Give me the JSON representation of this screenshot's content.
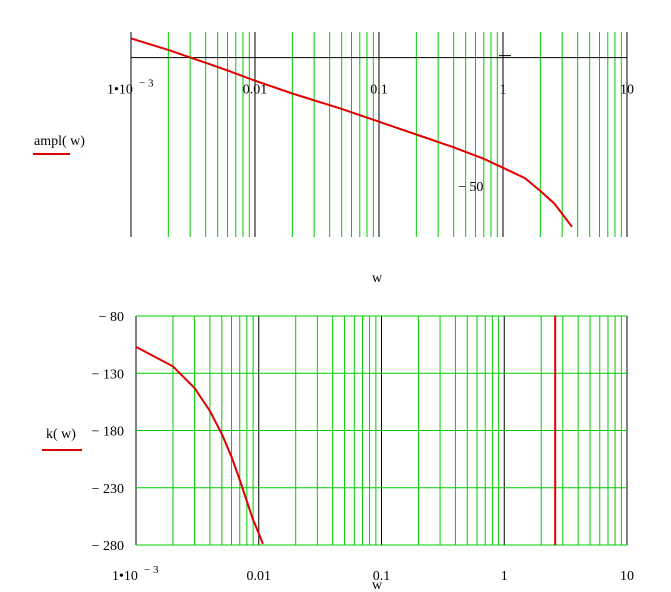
{
  "chart_data": [
    {
      "type": "line",
      "xscale": "log",
      "xlim": [
        0.001,
        10
      ],
      "ylim": [
        -70,
        10
      ],
      "xticks": [
        {
          "base": "1•10",
          "exp": "− 3"
        },
        {
          "label": "0.01"
        },
        {
          "label": "0.1"
        },
        {
          "label": "1"
        },
        {
          "label": "10"
        }
      ],
      "ylabels": [
        "− 50"
      ],
      "xlabel": "w",
      "legend": {
        "label": "ampl( w)",
        "color": "#e00000"
      },
      "grid": true,
      "series": [
        {
          "color": "#e00000",
          "x": [
            0.001,
            0.002,
            0.004,
            0.006,
            0.01,
            0.02,
            0.05,
            0.1,
            0.2,
            0.4,
            0.7,
            1.0,
            1.5,
            2.0,
            2.6,
            3.0,
            3.6
          ],
          "y": [
            7.5,
            3,
            -2,
            -5,
            -9,
            -14,
            -20,
            -25,
            -30,
            -35,
            -39.5,
            -43,
            -47,
            -52,
            -57,
            -61,
            -66
          ]
        }
      ]
    },
    {
      "type": "line",
      "xscale": "log",
      "xlim": [
        0.001,
        10
      ],
      "ylim": [
        -280,
        -80
      ],
      "yticks": [
        "− 80",
        "− 130",
        "− 180",
        "− 230",
        "− 280"
      ],
      "ytick_values": [
        -80,
        -130,
        -180,
        -230,
        -280
      ],
      "xticks": [
        {
          "base": "1•10",
          "exp": "− 3"
        },
        {
          "label": "0.01"
        },
        {
          "label": "0.1"
        },
        {
          "label": "1"
        },
        {
          "label": "10"
        }
      ],
      "xlabel": "w",
      "legend": {
        "label": "k( w)",
        "color": "#e00000"
      },
      "grid": true,
      "series": [
        {
          "color": "#e00000",
          "x": [
            0.001,
            0.002,
            0.003,
            0.004,
            0.005,
            0.006,
            0.007,
            0.008,
            0.009,
            0.01,
            0.0108
          ],
          "y": [
            -107,
            -124,
            -143,
            -163,
            -183,
            -203,
            -223,
            -242,
            -258,
            -270,
            -279
          ]
        }
      ],
      "vlines": [
        {
          "x": 2.6,
          "color": "#e00000"
        }
      ]
    }
  ]
}
